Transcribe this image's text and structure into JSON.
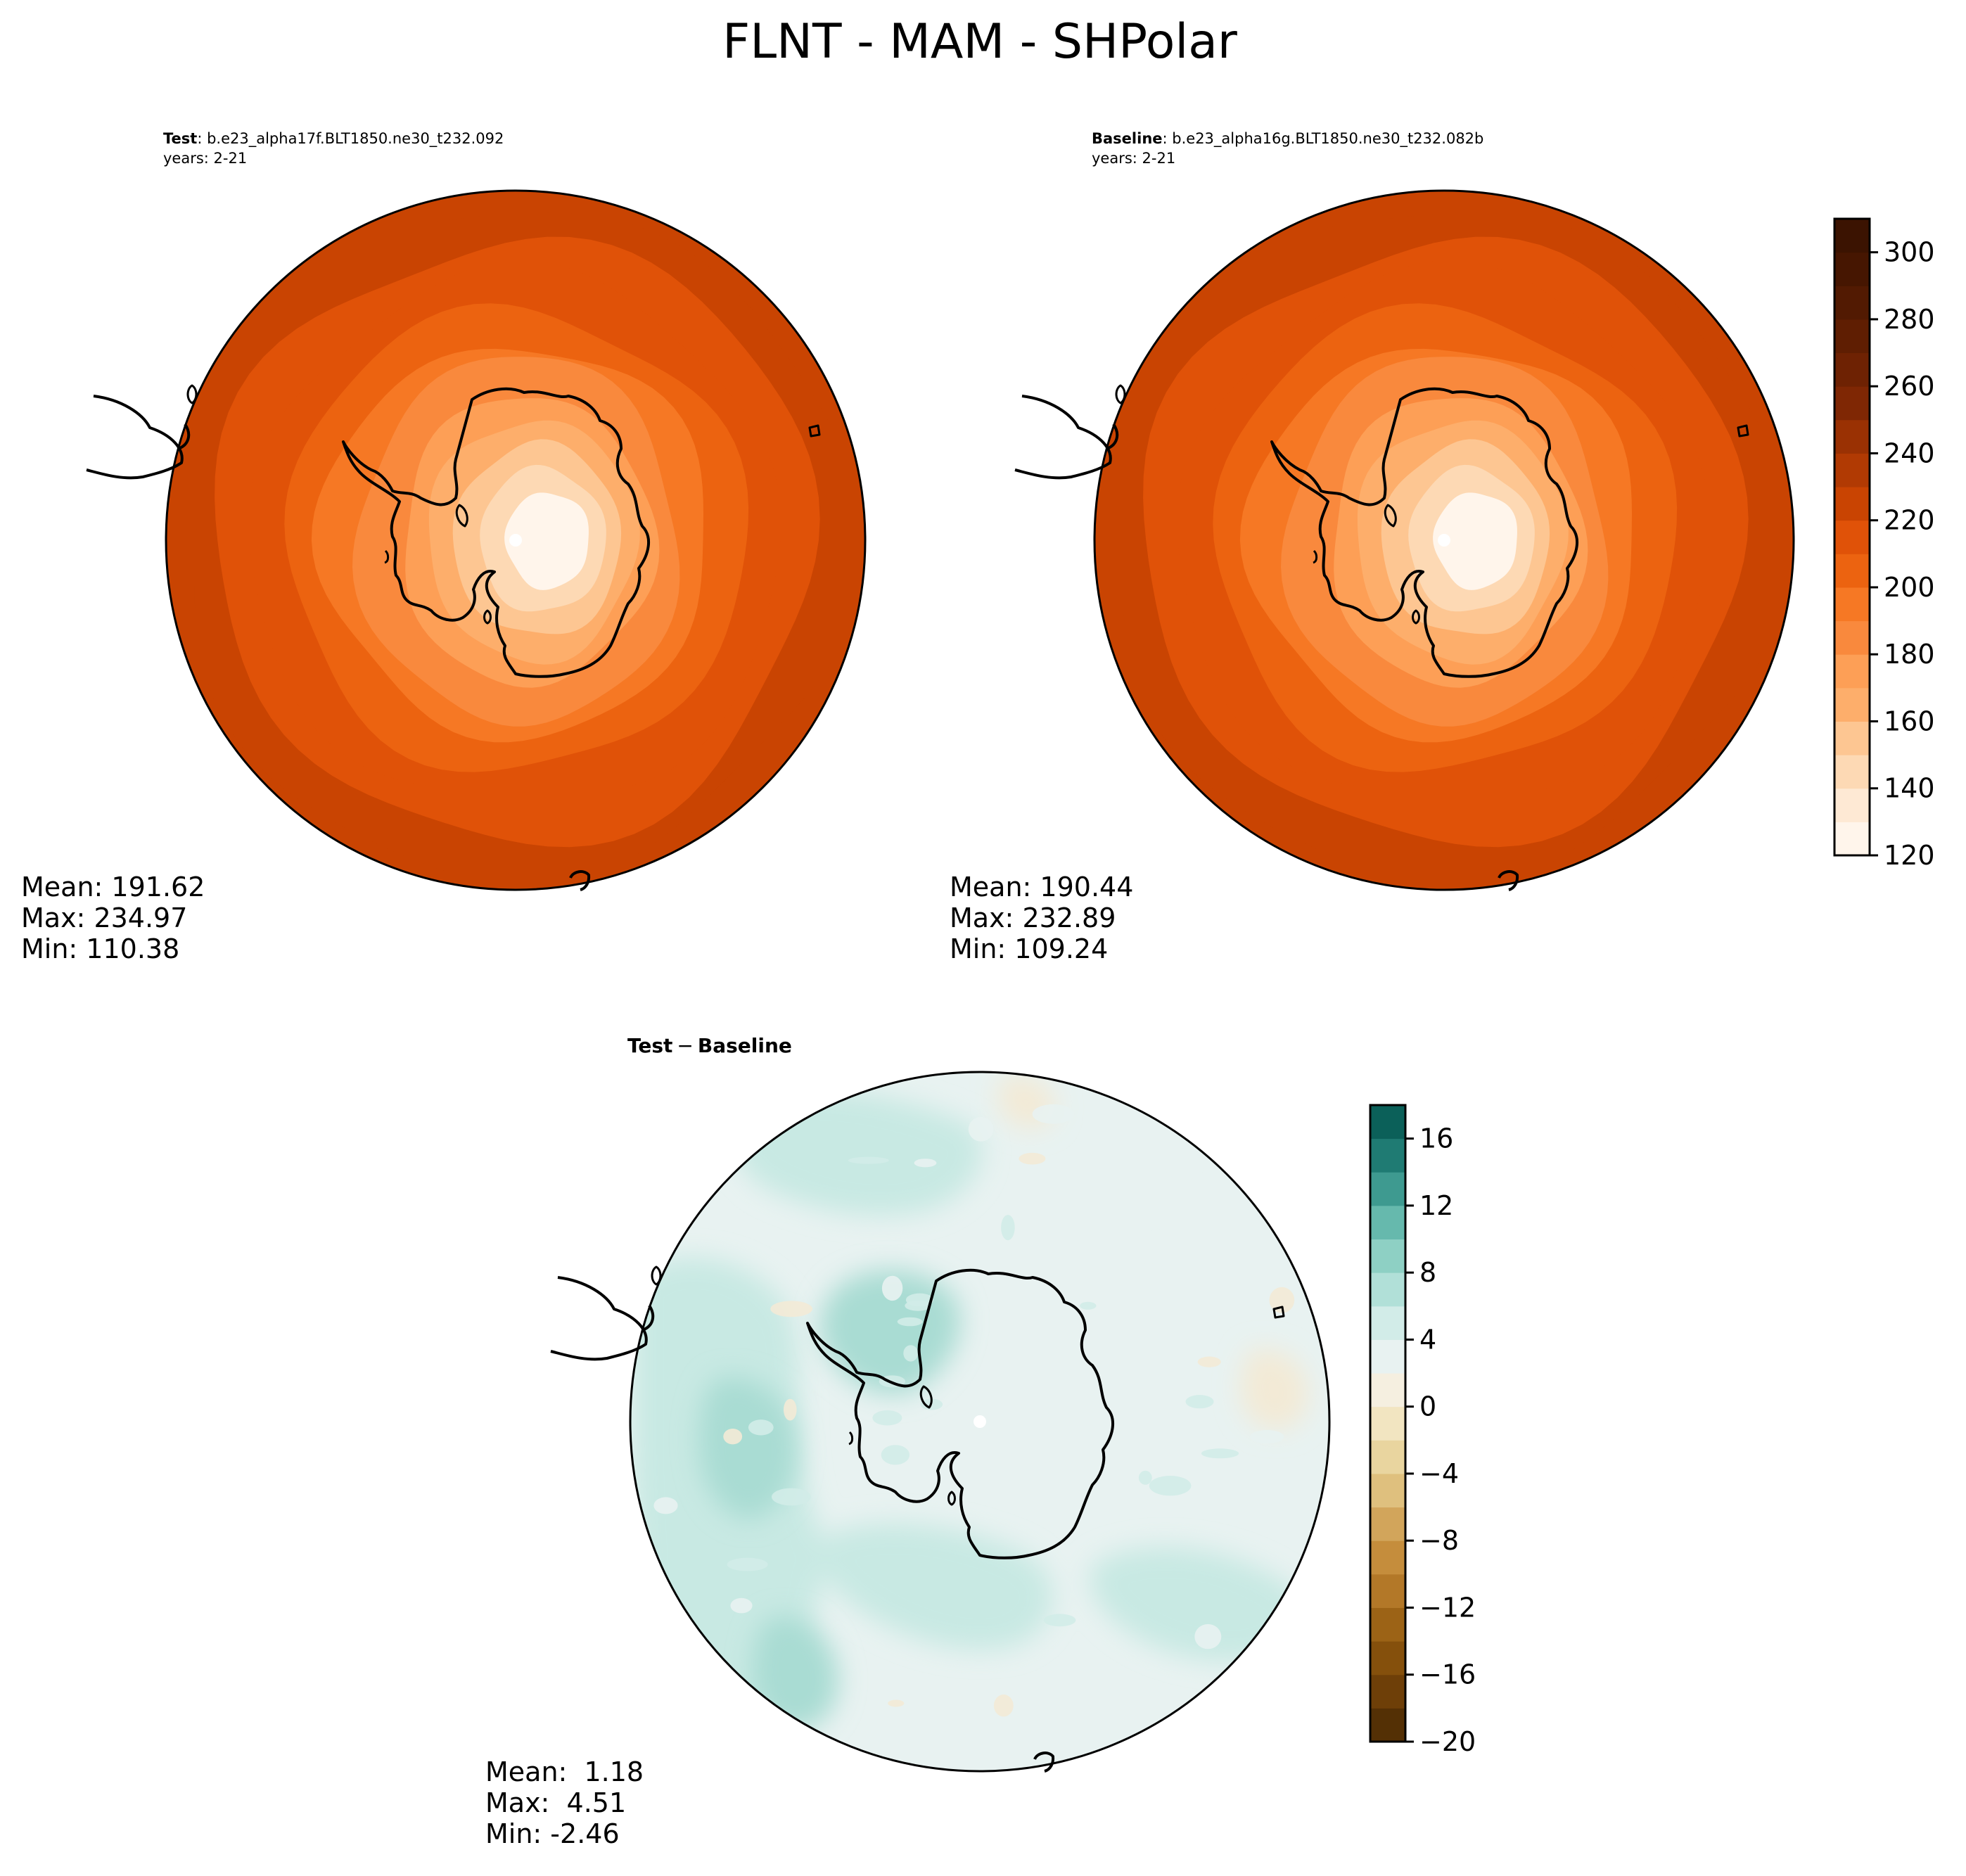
{
  "figure": {
    "title": "FLNT - MAM - SHPolar"
  },
  "chart_data": [
    {
      "type": "heatmap",
      "panel": "test",
      "label_bold": "Test",
      "case": ": b.e23_alpha17f.BLT1850.ne30_t232.092",
      "years": "years: 2-21",
      "projection": "south-polar-stereographic",
      "stats": {
        "mean": "Mean: 191.62",
        "max": "Max: 234.97",
        "min": "Min: 110.38"
      },
      "mean": 191.62,
      "max": 234.97,
      "min": 110.38,
      "field_levels": [
        {
          "r": 1.0,
          "value": 225
        },
        {
          "r": 0.96,
          "value": 220
        },
        {
          "r": 0.86,
          "value": 215
        },
        {
          "r": 0.76,
          "value": 210
        },
        {
          "r": 0.66,
          "value": 205
        },
        {
          "r": 0.56,
          "value": 195
        },
        {
          "r": 0.46,
          "value": 185
        },
        {
          "r": 0.36,
          "value": 175
        },
        {
          "r": 0.3,
          "value": 165
        },
        {
          "r": 0.24,
          "value": 155
        },
        {
          "r": 0.18,
          "value": 140
        },
        {
          "r": 0.12,
          "value": 125
        }
      ]
    },
    {
      "type": "heatmap",
      "panel": "baseline",
      "label_bold": "Baseline",
      "case": ": b.e23_alpha16g.BLT1850.ne30_t232.082b",
      "years": "years: 2-21",
      "projection": "south-polar-stereographic",
      "stats": {
        "mean": "Mean: 190.44",
        "max": "Max: 232.89",
        "min": "Min: 109.24"
      },
      "mean": 190.44,
      "max": 232.89,
      "min": 109.24,
      "field_levels": [
        {
          "r": 1.0,
          "value": 225
        },
        {
          "r": 0.96,
          "value": 220
        },
        {
          "r": 0.86,
          "value": 215
        },
        {
          "r": 0.76,
          "value": 210
        },
        {
          "r": 0.66,
          "value": 205
        },
        {
          "r": 0.56,
          "value": 195
        },
        {
          "r": 0.46,
          "value": 185
        },
        {
          "r": 0.36,
          "value": 175
        },
        {
          "r": 0.3,
          "value": 165
        },
        {
          "r": 0.24,
          "value": 155
        },
        {
          "r": 0.18,
          "value": 140
        },
        {
          "r": 0.12,
          "value": 125
        }
      ],
      "colorbar": {
        "vmin": 120,
        "vmax": 310,
        "step": 10,
        "ticks": [
          120,
          140,
          160,
          180,
          200,
          220,
          240,
          260,
          280,
          300
        ],
        "tick_labels": [
          "120",
          "140",
          "160",
          "180",
          "200",
          "220",
          "240",
          "260",
          "280",
          "300"
        ],
        "colors": [
          "#fff5eb",
          "#fee9d4",
          "#fdd9b4",
          "#fdc692",
          "#fdae6b",
          "#fd9f56",
          "#f9893d",
          "#f67824",
          "#ec6310",
          "#e05208",
          "#c94402",
          "#b13a03",
          "#9a3103",
          "#7f2704",
          "#6e2203",
          "#5f1e02",
          "#521a02",
          "#461601",
          "#3b1301"
        ]
      }
    },
    {
      "type": "heatmap",
      "panel": "difference",
      "label_a": "Test",
      "label_minus": "−",
      "label_b": "Baseline",
      "projection": "south-polar-stereographic",
      "stats": {
        "mean": "Mean:  1.18",
        "max": "Max:  4.51",
        "min": "Min: -2.46"
      },
      "mean": 1.18,
      "max": 4.51,
      "min": -2.46,
      "field": {
        "background": 1.0,
        "anomaly": 3.0,
        "negative": -1.0
      },
      "colorbar": {
        "vmin": -20,
        "vmax": 18,
        "step": 2,
        "ticks": [
          -20,
          -16,
          -12,
          -8,
          -4,
          0,
          4,
          8,
          12,
          16
        ],
        "tick_labels": [
          "−20",
          "−16",
          "−12",
          "−8",
          "−4",
          "0",
          "4",
          "8",
          "12",
          "16"
        ],
        "colors": [
          "#543005",
          "#6e3f08",
          "#85500c",
          "#9c6316",
          "#b37828",
          "#c58d3c",
          "#d2a55b",
          "#dfc07e",
          "#e9d59f",
          "#f2e5c1",
          "#f5efe0",
          "#e8f2f1",
          "#d2ece8",
          "#b1e0d8",
          "#8ed0c4",
          "#66b9ad",
          "#3e9a90",
          "#1f7b73",
          "#0b6059",
          "#00463d"
        ]
      }
    }
  ]
}
